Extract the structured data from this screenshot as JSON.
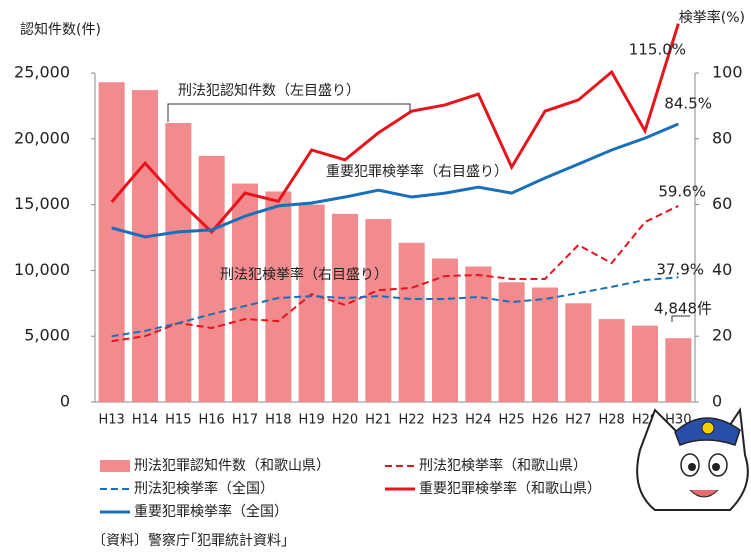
{
  "chart_data": {
    "type": "bar-line",
    "y_label": "認知件数(件)",
    "y2_label": "検挙率(%)",
    "categories": [
      "H13",
      "H14",
      "H15",
      "H16",
      "H17",
      "H18",
      "H19",
      "H20",
      "H21",
      "H22",
      "H23",
      "H24",
      "H25",
      "H26",
      "H27",
      "H28",
      "H29",
      "H30"
    ],
    "ylim": [
      0,
      25000
    ],
    "yticks": [
      0,
      {
        "value": 5000,
        "label": "5,000"
      },
      {
        "value": 10000,
        "label": "10,000"
      },
      {
        "value": 15000,
        "label": "15,000"
      },
      {
        "value": 20000,
        "label": "20,000"
      },
      {
        "value": 25000,
        "label": "25,000"
      }
    ],
    "y2lim": [
      0,
      100
    ],
    "y2ticks": [
      0,
      20,
      40,
      60,
      80,
      100
    ],
    "series": [
      {
        "name": "刑法犯罪認知件数（和歌山県）",
        "type": "bar",
        "color": "#f28b8e",
        "values": [
          24300,
          23700,
          21200,
          18700,
          16600,
          16000,
          15000,
          14300,
          13900,
          12100,
          10900,
          10300,
          9100,
          8700,
          7500,
          6300,
          5800,
          4848
        ],
        "value_labels": [
          null,
          null,
          null,
          null,
          null,
          null,
          null,
          null,
          null,
          null,
          null,
          null,
          null,
          null,
          null,
          null,
          null,
          "4,848件"
        ]
      },
      {
        "name": "刑法犯検挙率（和歌山県）",
        "type": "line",
        "dash": true,
        "axis": "y2",
        "color": "#e8141c",
        "values": [
          18.5,
          20,
          24,
          22.5,
          25.2,
          24.6,
          32.8,
          29.5,
          34,
          34.7,
          38.3,
          38.6,
          37.4,
          37.4,
          47.7,
          42.2,
          54.7,
          59.6
        ],
        "value_labels": [
          null,
          null,
          null,
          null,
          null,
          null,
          null,
          null,
          null,
          null,
          null,
          null,
          null,
          null,
          null,
          null,
          null,
          "59.6%"
        ]
      },
      {
        "name": "刑法犯検挙率（全国）",
        "type": "line",
        "dash": true,
        "axis": "y2",
        "color": "#1a6fba",
        "values": [
          20,
          21.6,
          24,
          26.7,
          29.2,
          31.6,
          32.2,
          31.6,
          32.2,
          31.3,
          31.3,
          31.9,
          30.4,
          31.3,
          33.1,
          35,
          37.1,
          37.9
        ],
        "value_labels": [
          null,
          null,
          null,
          null,
          null,
          null,
          null,
          null,
          null,
          null,
          null,
          null,
          null,
          null,
          null,
          null,
          null,
          "37.9%"
        ]
      },
      {
        "name": "重要犯罪検挙率（和歌山県）",
        "type": "line",
        "dash": false,
        "axis": "y2",
        "color": "#e8141c",
        "values": [
          60.8,
          72.6,
          61.4,
          51.7,
          63.5,
          61,
          76.6,
          73.6,
          81.8,
          88.4,
          90.3,
          93.6,
          71.4,
          88.4,
          91.8,
          100.3,
          82.4,
          115.0
        ],
        "value_labels": [
          null,
          null,
          null,
          null,
          null,
          null,
          null,
          null,
          null,
          null,
          null,
          null,
          null,
          null,
          null,
          null,
          null,
          "115.0%"
        ]
      },
      {
        "name": "重要犯罪検挙率（全国）",
        "type": "line",
        "dash": false,
        "axis": "y2",
        "color": "#1a6fba",
        "values": [
          52.9,
          50.2,
          51.7,
          52.3,
          56.5,
          59.6,
          60.5,
          62.3,
          64.4,
          62.3,
          63.5,
          65.3,
          63.5,
          68.1,
          72.3,
          76.6,
          80.2,
          84.5
        ],
        "value_labels": [
          null,
          null,
          null,
          null,
          null,
          null,
          null,
          null,
          null,
          null,
          null,
          null,
          null,
          null,
          null,
          null,
          null,
          "84.5%"
        ]
      }
    ],
    "annotations": [
      "刑法犯認知件数（左目盛り）",
      "重要犯罪検挙率（右目盛り）",
      "刑法犯検挙率（右目盛り）"
    ],
    "source": "〔資料〕警察庁｢犯罪統計資料｣"
  }
}
